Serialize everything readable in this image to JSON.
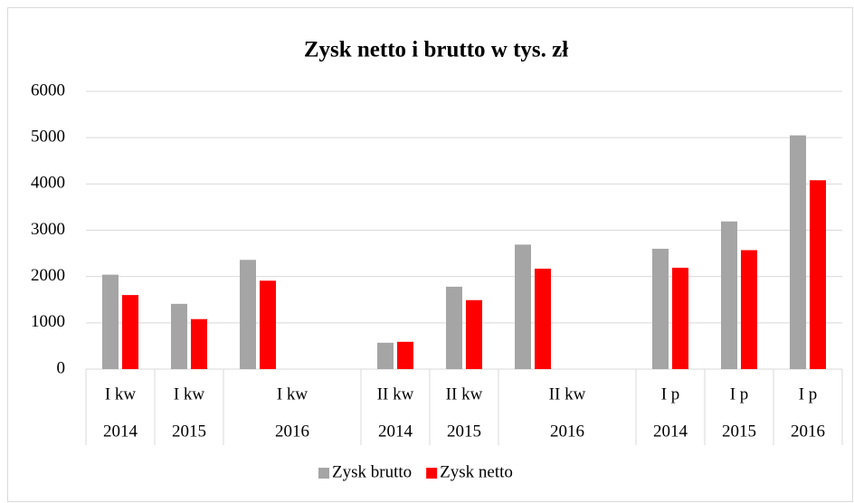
{
  "chart_data": {
    "type": "bar",
    "title": "Zysk netto i brutto w tys. zł",
    "categories": [
      "I kw",
      "I kw",
      "I kw",
      null,
      "II kw",
      "II kw",
      "II kw",
      null,
      "I p",
      "I p",
      "I p"
    ],
    "years": [
      "2014",
      "2015",
      "2016",
      null,
      "2014",
      "2015",
      "2016",
      null,
      "2014",
      "2015",
      "2016"
    ],
    "series": [
      {
        "name": "Zysk brutto",
        "color": "#a5a5a5",
        "values": [
          2040,
          1410,
          2360,
          null,
          570,
          1780,
          2690,
          null,
          2600,
          3190,
          5050
        ]
      },
      {
        "name": "Zysk netto",
        "color": "#ff0000",
        "values": [
          1600,
          1080,
          1910,
          null,
          590,
          1490,
          2170,
          null,
          2190,
          2570,
          4080
        ]
      }
    ],
    "ylim": [
      0,
      6000
    ],
    "yticks": [
      0,
      1000,
      2000,
      3000,
      4000,
      5000,
      6000
    ],
    "grid": true,
    "legend": "bottom"
  }
}
